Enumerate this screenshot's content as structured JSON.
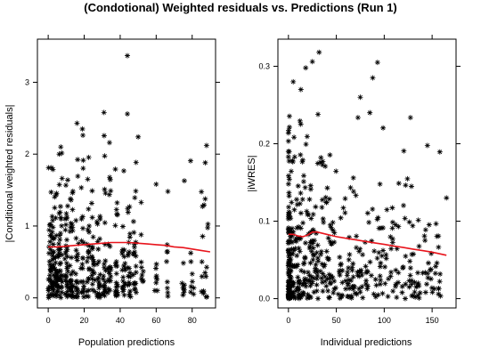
{
  "title": "(Condotional) Weighted residuals vs. Predictions (Run 1)",
  "chart_data": [
    {
      "type": "scatter",
      "xlabel": "Population predictions",
      "ylabel": "|Conditional weighted residuals|",
      "xlim": [
        -6,
        93
      ],
      "ylim": [
        -0.14,
        3.6
      ],
      "xticks": [
        0,
        20,
        40,
        60,
        80
      ],
      "yticks": [
        0,
        1,
        2,
        3
      ],
      "point_marker": "asterisk",
      "point_color": "#000000",
      "smooth_color": "#e8141c",
      "x_columns": [
        1,
        3,
        5,
        7,
        10,
        13,
        16,
        19,
        22,
        25,
        28,
        31,
        34,
        38,
        42,
        45,
        48,
        52,
        60,
        66,
        75,
        80,
        86,
        88
      ],
      "smooth": {
        "x": [
          0,
          5,
          10,
          15,
          20,
          25,
          30,
          35,
          40,
          45,
          50,
          55,
          60,
          65,
          70,
          75,
          80,
          85,
          90
        ],
        "y": [
          0.71,
          0.71,
          0.72,
          0.73,
          0.74,
          0.75,
          0.76,
          0.77,
          0.77,
          0.77,
          0.76,
          0.75,
          0.74,
          0.73,
          0.71,
          0.7,
          0.68,
          0.66,
          0.64
        ]
      },
      "highlight_points": [
        {
          "x": 44,
          "y": 3.37
        },
        {
          "x": 31,
          "y": 2.58
        },
        {
          "x": 44,
          "y": 2.56
        },
        {
          "x": 16,
          "y": 2.43
        },
        {
          "x": 19,
          "y": 2.35
        },
        {
          "x": 50,
          "y": 2.24
        },
        {
          "x": 88,
          "y": 2.12
        },
        {
          "x": 7,
          "y": 2.1
        }
      ]
    },
    {
      "type": "scatter",
      "xlabel": "Individual predictions",
      "ylabel": "|iWRES|",
      "xlim": [
        -11,
        175
      ],
      "ylim": [
        -0.012,
        0.335
      ],
      "xticks": [
        0,
        50,
        100,
        150
      ],
      "yticks": [
        0.0,
        0.1,
        0.2,
        0.3
      ],
      "point_marker": "asterisk",
      "point_color": "#000000",
      "smooth_color": "#e8141c",
      "smooth": {
        "x": [
          0,
          5,
          10,
          15,
          20,
          25,
          30,
          40,
          50,
          60,
          70,
          80,
          90,
          100,
          110,
          120,
          130,
          140,
          150,
          165
        ],
        "y": [
          0.083,
          0.083,
          0.081,
          0.08,
          0.082,
          0.086,
          0.086,
          0.083,
          0.08,
          0.078,
          0.076,
          0.074,
          0.072,
          0.07,
          0.068,
          0.066,
          0.064,
          0.062,
          0.06,
          0.056
        ]
      },
      "highlight_points": [
        {
          "x": 32,
          "y": 0.318
        },
        {
          "x": 25,
          "y": 0.306
        },
        {
          "x": 18,
          "y": 0.298
        },
        {
          "x": 93,
          "y": 0.305
        },
        {
          "x": 88,
          "y": 0.285
        },
        {
          "x": 5,
          "y": 0.28
        },
        {
          "x": 13,
          "y": 0.27
        },
        {
          "x": 75,
          "y": 0.26
        },
        {
          "x": 85,
          "y": 0.24
        },
        {
          "x": 165,
          "y": 0.13
        }
      ]
    }
  ]
}
